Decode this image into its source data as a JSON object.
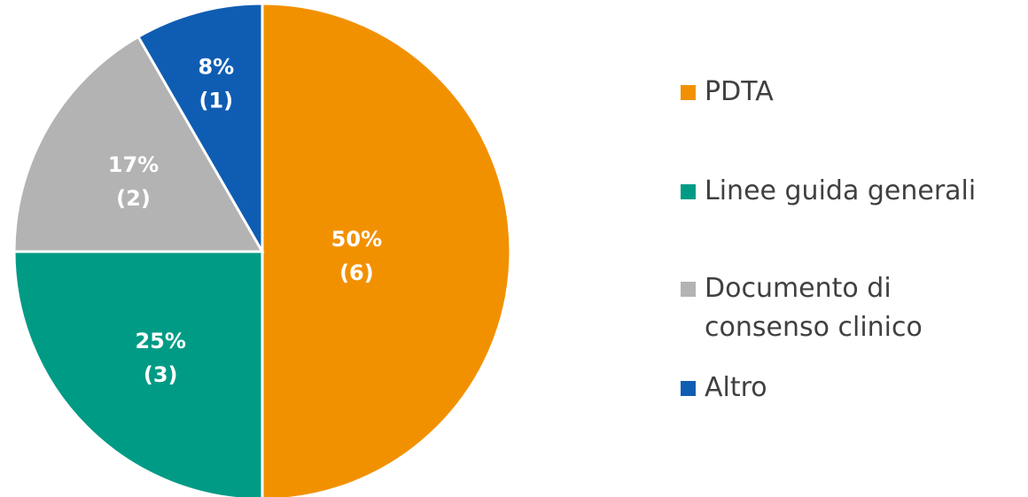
{
  "chart_data": {
    "type": "pie",
    "categories": [
      "PDTA",
      "Linee guida generali",
      "Documento di consenso clinico",
      "Altro"
    ],
    "values": [
      6,
      3,
      2,
      1
    ],
    "percent_labels": [
      "50%",
      "25%",
      "17%",
      "8%"
    ],
    "count_labels": [
      "(6)",
      "(3)",
      "(2)",
      "(1)"
    ],
    "colors": [
      "#f29100",
      "#009b85",
      "#b3b3b3",
      "#0f5db3"
    ],
    "legend_position": "right",
    "start": "top, clockwise"
  },
  "legend": {
    "items": [
      {
        "label": "PDTA",
        "color": "#f29100"
      },
      {
        "label": "Linee guida generali",
        "color": "#009b85"
      },
      {
        "label": "Documento di consenso clinico",
        "color": "#b3b3b3"
      },
      {
        "label": "Altro",
        "color": "#0f5db3"
      }
    ]
  }
}
